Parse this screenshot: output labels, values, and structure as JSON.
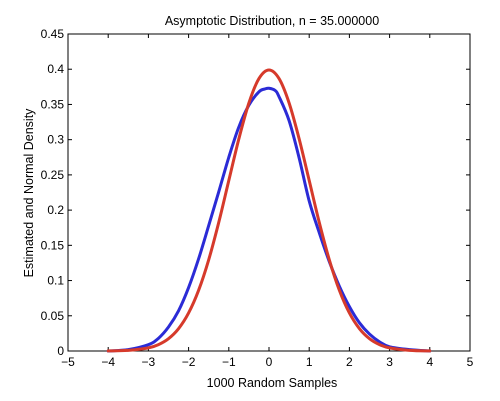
{
  "chart_data": {
    "type": "line",
    "title": "Asymptotic Distribution, n = 35.000000",
    "xlabel": "1000 Random Samples",
    "ylabel": "Estimated and Normal Density",
    "xlim": [
      -5,
      5
    ],
    "ylim": [
      0,
      0.45
    ],
    "xticks": [
      -5,
      -4,
      -3,
      -2,
      -1,
      0,
      1,
      2,
      3,
      4,
      5
    ],
    "xtick_labels": [
      "−5",
      "−4",
      "−3",
      "−2",
      "−1",
      "0",
      "1",
      "2",
      "3",
      "4",
      "5"
    ],
    "yticks": [
      0,
      0.05,
      0.1,
      0.15,
      0.2,
      0.25,
      0.3,
      0.35,
      0.4,
      0.45
    ],
    "ytick_labels": [
      "0",
      "0.05",
      "0.1",
      "0.15",
      "0.2",
      "0.25",
      "0.3",
      "0.35",
      "0.4",
      "0.45"
    ],
    "grid": false,
    "legend": "none",
    "series": [
      {
        "color": "#2b2bd6",
        "x": [
          -4.0,
          -3.5,
          -3.0,
          -2.75,
          -2.5,
          -2.25,
          -2.0,
          -1.75,
          -1.5,
          -1.25,
          -1.0,
          -0.75,
          -0.5,
          -0.25,
          -0.1,
          0.0,
          0.15,
          0.25,
          0.5,
          0.75,
          1.0,
          1.25,
          1.5,
          1.75,
          2.0,
          2.25,
          2.5,
          2.75,
          3.0,
          3.5,
          4.0
        ],
        "values": [
          0.0,
          0.002,
          0.009,
          0.018,
          0.034,
          0.057,
          0.09,
          0.131,
          0.178,
          0.226,
          0.275,
          0.318,
          0.349,
          0.368,
          0.372,
          0.373,
          0.37,
          0.361,
          0.327,
          0.274,
          0.213,
          0.168,
          0.127,
          0.092,
          0.063,
          0.04,
          0.024,
          0.013,
          0.006,
          0.002,
          0.0
        ]
      },
      {
        "color": "#d63a2b",
        "x": [
          -4.0,
          -3.5,
          -3.0,
          -2.75,
          -2.5,
          -2.25,
          -2.0,
          -1.75,
          -1.5,
          -1.25,
          -1.0,
          -0.75,
          -0.5,
          -0.25,
          0.0,
          0.25,
          0.5,
          0.75,
          1.0,
          1.25,
          1.5,
          1.75,
          2.0,
          2.25,
          2.5,
          2.75,
          3.0,
          3.5,
          4.0
        ],
        "values": [
          0.0001,
          0.0009,
          0.0044,
          0.0091,
          0.0175,
          0.0317,
          0.054,
          0.0863,
          0.1295,
          0.1826,
          0.242,
          0.3011,
          0.3521,
          0.3867,
          0.3989,
          0.3867,
          0.3521,
          0.3011,
          0.242,
          0.1826,
          0.1295,
          0.0863,
          0.054,
          0.0317,
          0.0175,
          0.0091,
          0.0044,
          0.0009,
          0.0001
        ]
      }
    ]
  }
}
